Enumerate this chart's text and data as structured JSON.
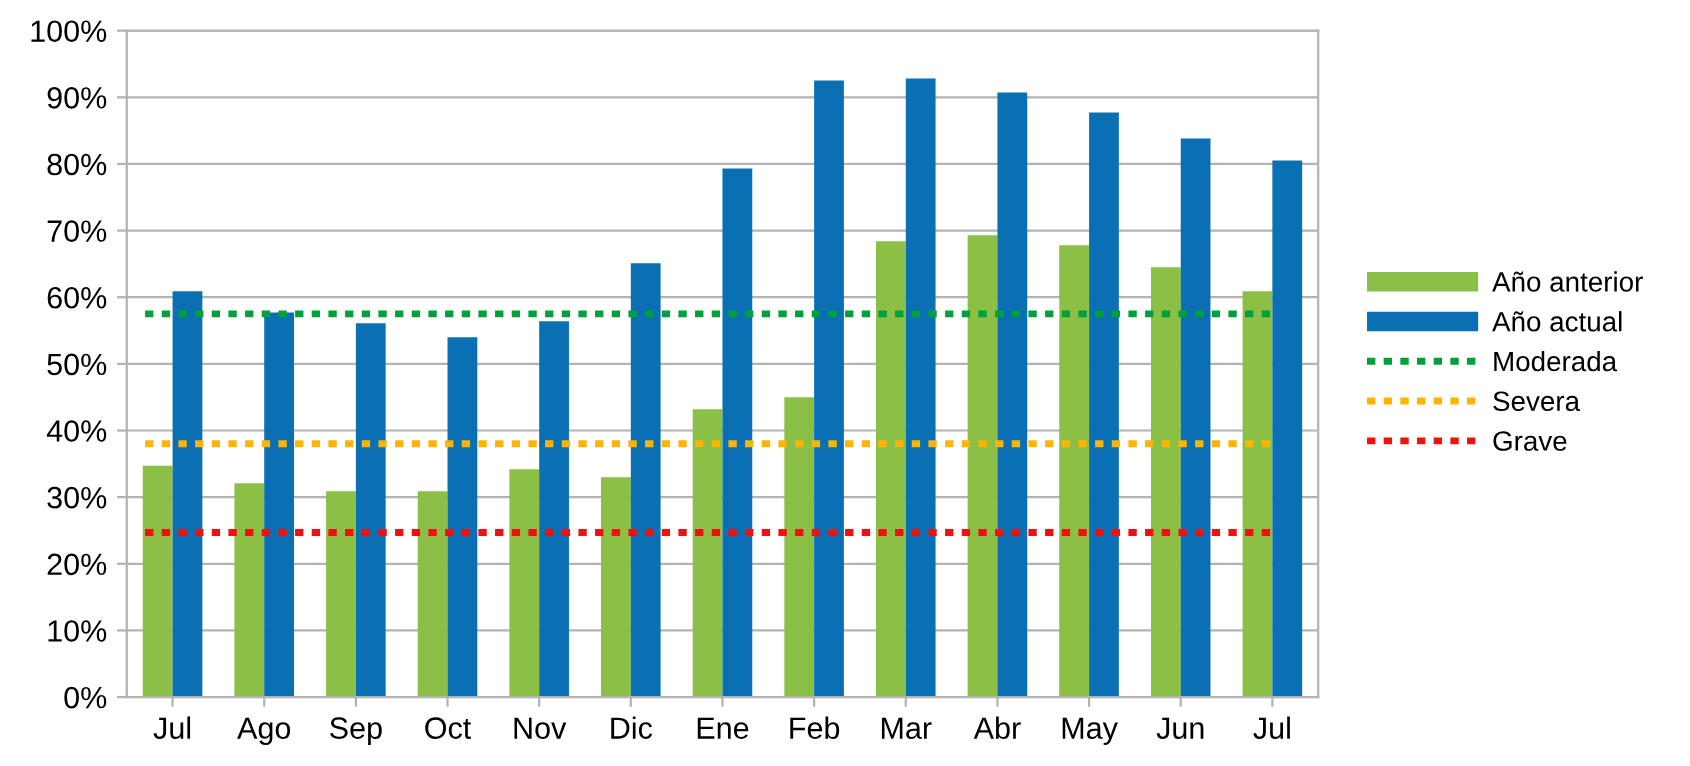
{
  "chart_data": {
    "type": "bar",
    "categories": [
      "Jul",
      "Ago",
      "Sep",
      "Oct",
      "Nov",
      "Dic",
      "Ene",
      "Feb",
      "Mar",
      "Abr",
      "May",
      "Jun",
      "Jul"
    ],
    "series": [
      {
        "name": "Año anterior",
        "color": "#8bbf45",
        "values": [
          34.7,
          32.1,
          30.9,
          30.9,
          34.2,
          33.0,
          43.2,
          45.0,
          68.4,
          69.3,
          67.8,
          64.5,
          60.9
        ]
      },
      {
        "name": "Año actual",
        "color": "#0b6fb4",
        "values": [
          60.9,
          57.7,
          56.1,
          54.0,
          56.4,
          65.1,
          79.3,
          92.5,
          92.8,
          90.7,
          87.7,
          83.8,
          80.5
        ]
      }
    ],
    "ref_lines": [
      {
        "axis": "y",
        "value": 57.5,
        "label": "Moderada",
        "color": "#00a03c",
        "line_style": "dotted"
      },
      {
        "axis": "y",
        "value": 38.0,
        "label": "Severa",
        "color": "#ffb400",
        "line_style": "dotted"
      },
      {
        "axis": "y",
        "value": 24.7,
        "label": "Grave",
        "color": "#ee1111",
        "line_style": "dotted"
      }
    ],
    "ylim": [
      0,
      100
    ],
    "yticks": [
      {
        "value": 0,
        "label": "0%"
      },
      {
        "value": 10,
        "label": "10%"
      },
      {
        "value": 20,
        "label": "20%"
      },
      {
        "value": 30,
        "label": "30%"
      },
      {
        "value": 40,
        "label": "40%"
      },
      {
        "value": 50,
        "label": "50%"
      },
      {
        "value": 60,
        "label": "60%"
      },
      {
        "value": 70,
        "label": "70%"
      },
      {
        "value": 80,
        "label": "80%"
      },
      {
        "value": 90,
        "label": "90%"
      },
      {
        "value": 100,
        "label": "100%"
      }
    ],
    "grid": "y",
    "legend": "right"
  }
}
